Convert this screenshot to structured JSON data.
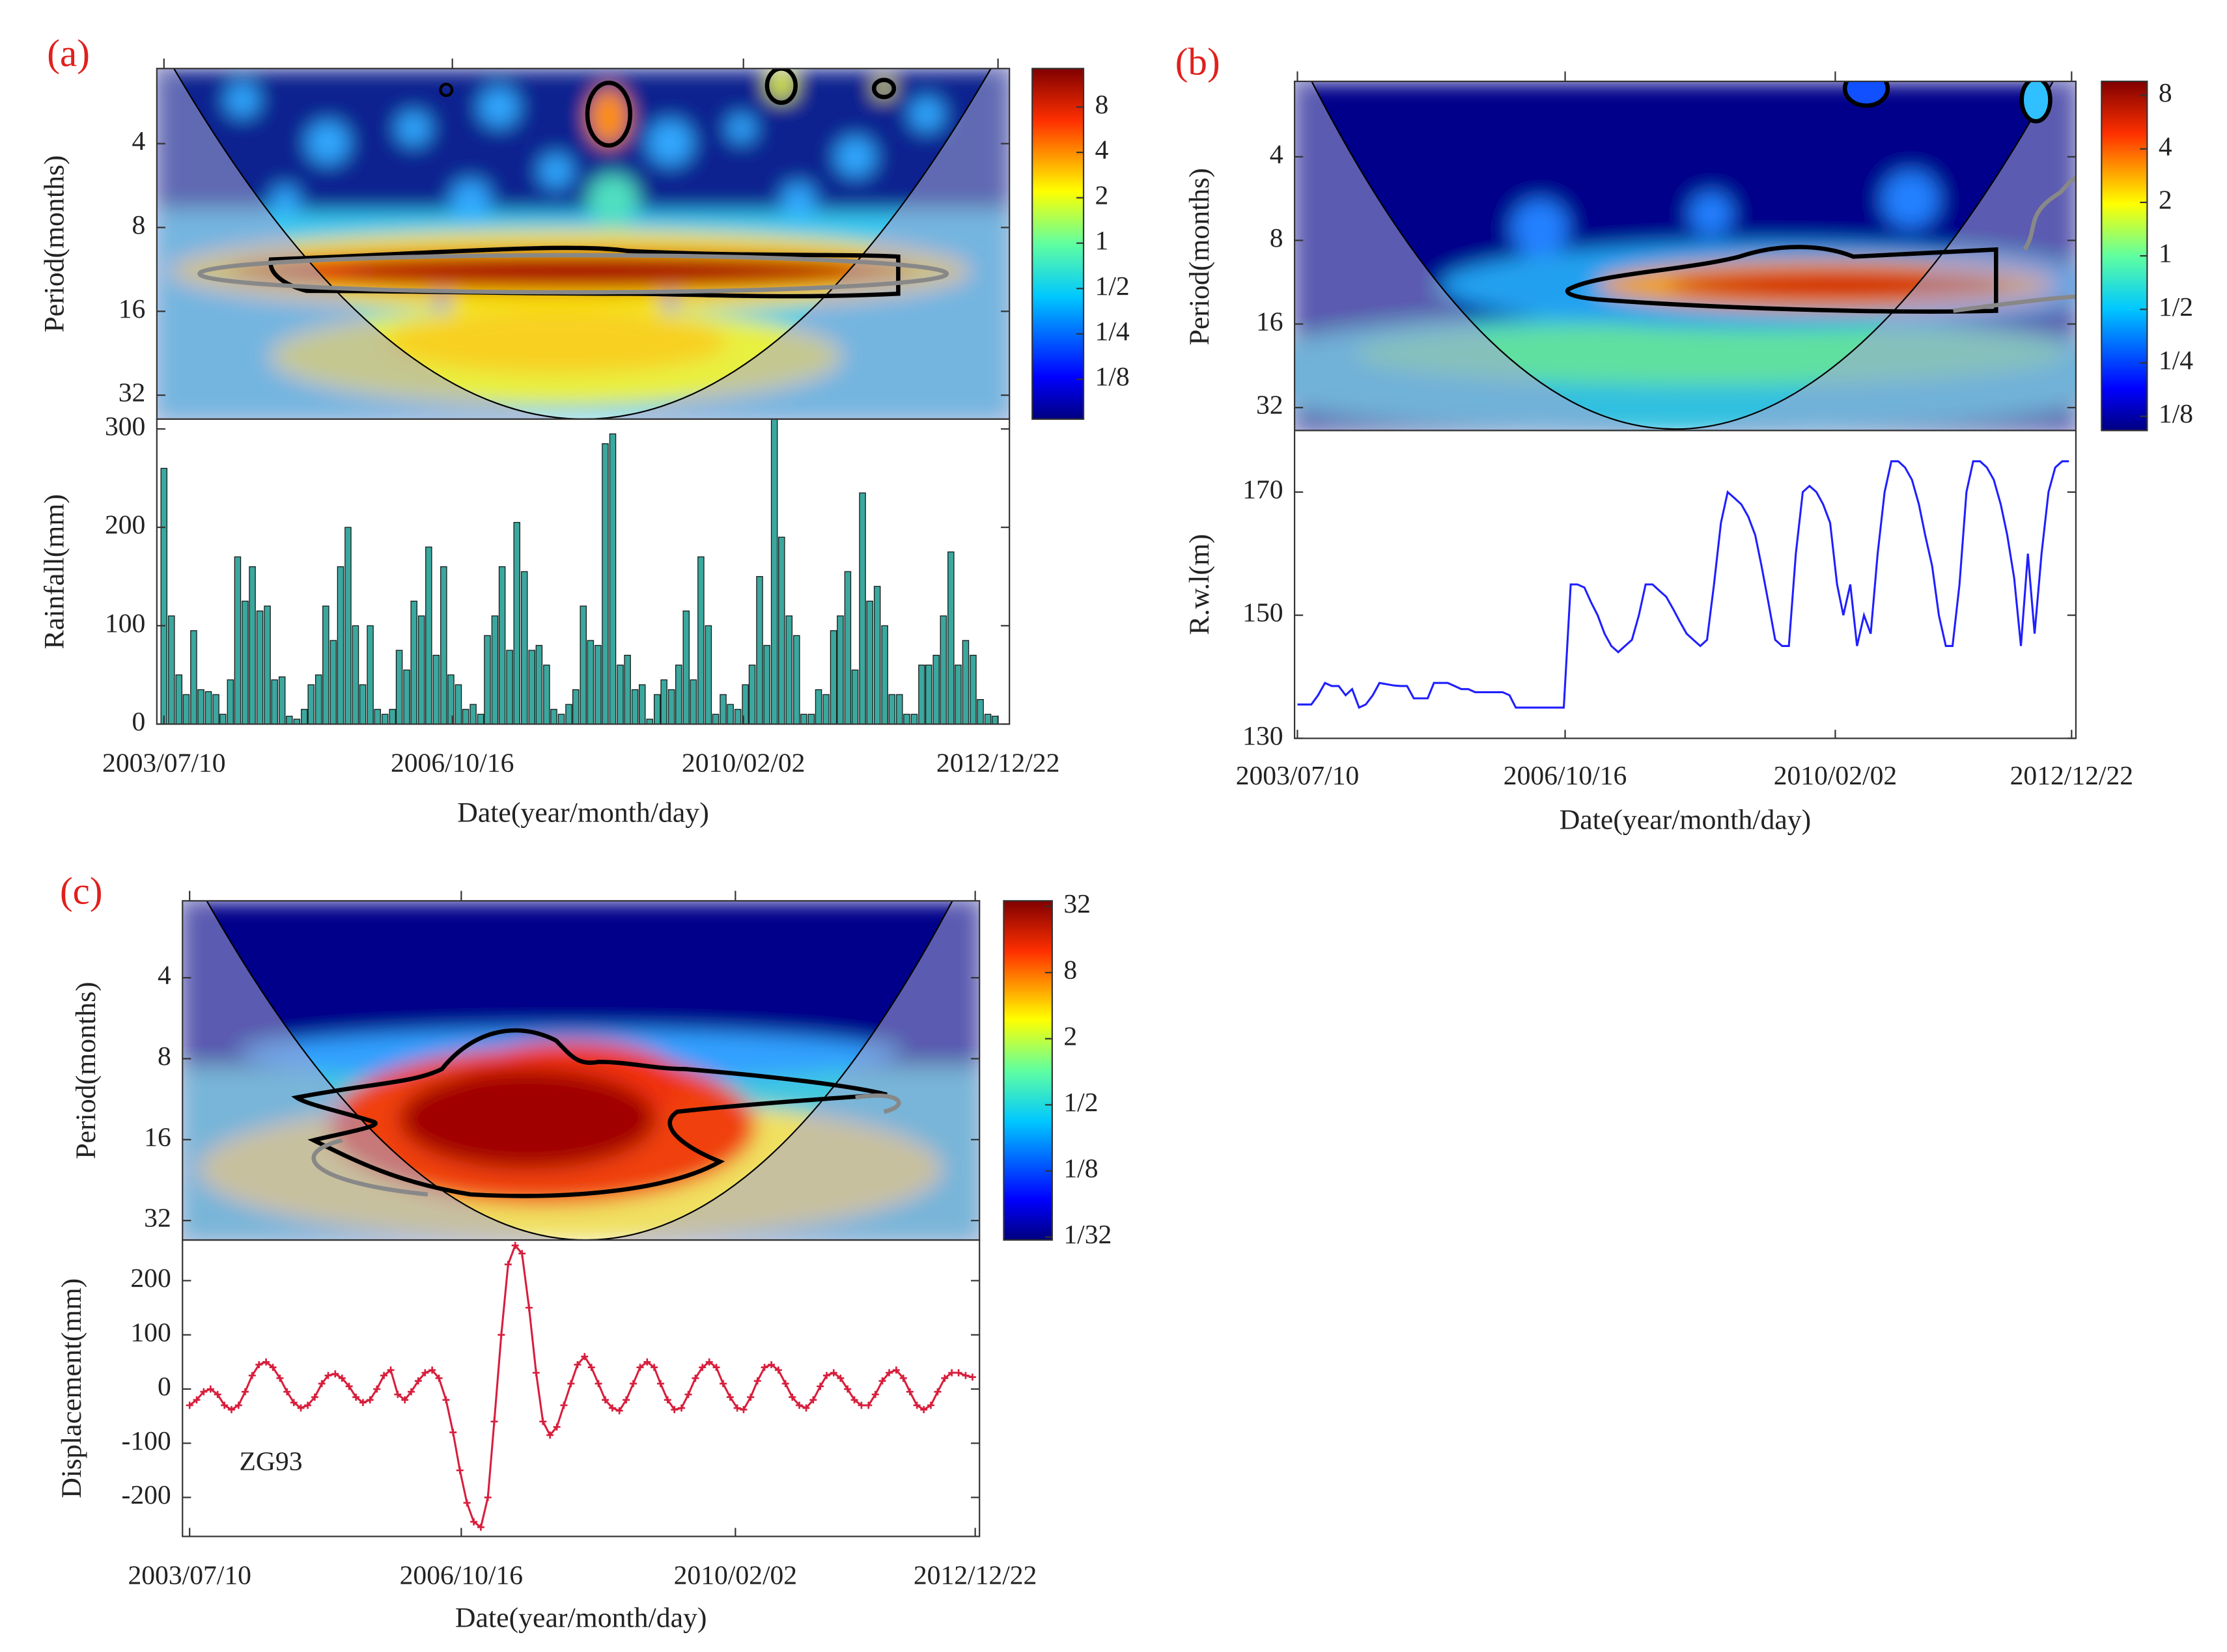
{
  "chart_data": [
    {
      "type": "wavelet",
      "panel_label": "(a)",
      "y_label": "Period(months)",
      "log_scale": true,
      "y_reversed": true,
      "ylim": [
        2.15,
        39
      ],
      "yticks": [
        4,
        8,
        16,
        32
      ],
      "xlim": [
        "2003/07/10",
        "2012/12/22"
      ],
      "colorbar": {
        "log": true,
        "lim": [
          0.068,
          14.4
        ],
        "ticks": [
          8,
          4,
          2,
          1,
          {
            "value": 0.5,
            "label": "1/2"
          },
          {
            "value": 0.25,
            "label": "1/4"
          },
          {
            "value": 0.125,
            "label": "1/8"
          }
        ]
      }
    },
    {
      "type": "bar",
      "y_label": "Rainfall(mm)",
      "x_label": "Date(year/month/day)",
      "color": "#3aa89e",
      "ylim": [
        0,
        310
      ],
      "yticks": [
        0,
        100,
        200,
        300
      ],
      "xlim": [
        "2003/07/10",
        "2012/12/22"
      ],
      "xticks": [
        "2003/07/10",
        "2006/10/16",
        "2010/02/02",
        "2012/12/22"
      ],
      "x": [
        "2003/07/10",
        "2003/08/10",
        "2003/09/10",
        "2003/10/10",
        "2003/11/10",
        "2003/12/10",
        "2004/01/10",
        "2004/02/10",
        "2004/03/10",
        "2004/04/10",
        "2004/05/10",
        "2004/06/10",
        "2004/07/10",
        "2004/08/10",
        "2004/09/10",
        "2004/10/10",
        "2004/11/10",
        "2004/12/10",
        "2005/01/10",
        "2005/02/10",
        "2005/03/10",
        "2005/04/10",
        "2005/05/10",
        "2005/06/10",
        "2005/07/10",
        "2005/08/10",
        "2005/09/10",
        "2005/10/10",
        "2005/11/10",
        "2005/12/10",
        "2006/01/10",
        "2006/02/10",
        "2006/03/10",
        "2006/04/10",
        "2006/05/10",
        "2006/06/10",
        "2006/07/10",
        "2006/08/10",
        "2006/09/10",
        "2006/10/10",
        "2006/11/10",
        "2006/12/10",
        "2007/01/10",
        "2007/02/10",
        "2007/03/10",
        "2007/04/10",
        "2007/05/10",
        "2007/06/10",
        "2007/07/10",
        "2007/08/10",
        "2007/09/10",
        "2007/10/10",
        "2007/11/10",
        "2007/12/10",
        "2008/01/10",
        "2008/02/10",
        "2008/03/10",
        "2008/04/10",
        "2008/05/10",
        "2008/06/10",
        "2008/07/10",
        "2008/08/10",
        "2008/09/10",
        "2008/10/10",
        "2008/11/10",
        "2008/12/10",
        "2009/01/10",
        "2009/02/10",
        "2009/03/10",
        "2009/04/10",
        "2009/05/10",
        "2009/06/10",
        "2009/07/10",
        "2009/08/10",
        "2009/09/10",
        "2009/10/10",
        "2009/11/10",
        "2009/12/10",
        "2010/01/10",
        "2010/02/10",
        "2010/03/10",
        "2010/04/10",
        "2010/05/10",
        "2010/06/10",
        "2010/07/10",
        "2010/08/10",
        "2010/09/10",
        "2010/10/10",
        "2010/11/10",
        "2010/12/10",
        "2011/01/10",
        "2011/02/10",
        "2011/03/10",
        "2011/04/10",
        "2011/05/10",
        "2011/06/10",
        "2011/07/10",
        "2011/08/10",
        "2011/09/10",
        "2011/10/10",
        "2011/11/10",
        "2011/12/10",
        "2012/01/10",
        "2012/02/10",
        "2012/03/10",
        "2012/04/10",
        "2012/05/10",
        "2012/06/10",
        "2012/07/10",
        "2012/08/10",
        "2012/09/10",
        "2012/10/10",
        "2012/11/10",
        "2012/12/10"
      ],
      "values": [
        260,
        110,
        50,
        30,
        95,
        35,
        33,
        30,
        10,
        45,
        170,
        125,
        160,
        115,
        120,
        45,
        48,
        8,
        5,
        15,
        40,
        50,
        120,
        85,
        160,
        200,
        100,
        40,
        100,
        15,
        10,
        15,
        75,
        55,
        125,
        110,
        180,
        70,
        160,
        50,
        40,
        15,
        20,
        10,
        90,
        110,
        160,
        75,
        205,
        155,
        75,
        80,
        60,
        15,
        10,
        20,
        35,
        120,
        85,
        80,
        285,
        295,
        60,
        70,
        35,
        40,
        5,
        30,
        45,
        35,
        60,
        115,
        45,
        170,
        100,
        10,
        30,
        20,
        15,
        40,
        60,
        150,
        80,
        310,
        190,
        110,
        90,
        10,
        10,
        35,
        30,
        95,
        110,
        155,
        55,
        235,
        125,
        140,
        100,
        30,
        30,
        10,
        10,
        60,
        60,
        70,
        110,
        175,
        60,
        85,
        70,
        25,
        10,
        8
      ]
    },
    {
      "type": "wavelet",
      "panel_label": "(b)",
      "y_label": "Period(months)",
      "log_scale": true,
      "y_reversed": true,
      "ylim": [
        2.14,
        38.7
      ],
      "yticks": [
        4,
        8,
        16,
        32
      ],
      "xlim": [
        "2003/07/10",
        "2012/12/22"
      ],
      "colorbar": {
        "log": true,
        "lim": [
          0.104,
          9.6
        ],
        "ticks": [
          8,
          4,
          2,
          1,
          {
            "value": 0.5,
            "label": "1/2"
          },
          {
            "value": 0.25,
            "label": "1/4"
          },
          {
            "value": 0.125,
            "label": "1/8"
          }
        ]
      }
    },
    {
      "type": "line",
      "y_label": "R.w.l(m)",
      "x_label": "Date(year/month/day)",
      "color": "#1f1fff",
      "markers": false,
      "ylim": [
        130,
        180
      ],
      "yticks": [
        130,
        150,
        170
      ],
      "xlim": [
        "2003/07/10",
        "2012/12/22"
      ],
      "xticks": [
        "2003/07/10",
        "2006/10/16",
        "2010/02/02",
        "2012/12/22"
      ],
      "x": [
        "2003/07/10",
        "2003/08/10",
        "2003/09/10",
        "2003/10/10",
        "2003/11/10",
        "2003/12/10",
        "2004/01/10",
        "2004/02/10",
        "2004/03/10",
        "2004/04/10",
        "2004/05/10",
        "2004/06/10",
        "2004/07/10",
        "2004/08/10",
        "2004/09/10",
        "2004/10/10",
        "2004/11/10",
        "2004/12/10",
        "2005/01/10",
        "2005/02/10",
        "2005/03/10",
        "2005/04/10",
        "2005/05/10",
        "2005/06/10",
        "2005/07/10",
        "2005/08/10",
        "2005/09/10",
        "2005/10/10",
        "2005/11/10",
        "2005/12/10",
        "2006/01/10",
        "2006/02/10",
        "2006/03/10",
        "2006/04/10",
        "2006/05/10",
        "2006/06/10",
        "2006/07/10",
        "2006/08/10",
        "2006/09/10",
        "2006/10/10",
        "2006/11/10",
        "2006/12/10",
        "2007/01/10",
        "2007/02/10",
        "2007/03/10",
        "2007/04/10",
        "2007/05/10",
        "2007/06/10",
        "2007/07/10",
        "2007/08/10",
        "2007/09/10",
        "2007/10/10",
        "2007/11/10",
        "2007/12/10",
        "2008/01/10",
        "2008/02/10",
        "2008/03/10",
        "2008/04/10",
        "2008/05/10",
        "2008/06/10",
        "2008/07/10",
        "2008/08/10",
        "2008/09/10",
        "2008/10/10",
        "2008/11/10",
        "2008/12/10",
        "2009/01/10",
        "2009/02/10",
        "2009/03/10",
        "2009/04/10",
        "2009/05/10",
        "2009/06/10",
        "2009/07/10",
        "2009/08/10",
        "2009/09/10",
        "2009/10/10",
        "2009/11/10",
        "2009/12/10",
        "2010/01/10",
        "2010/02/10",
        "2010/03/10",
        "2010/04/10",
        "2010/05/10",
        "2010/06/10",
        "2010/07/10",
        "2010/08/10",
        "2010/09/10",
        "2010/10/10",
        "2010/11/10",
        "2010/12/10",
        "2011/01/10",
        "2011/02/10",
        "2011/03/10",
        "2011/04/10",
        "2011/05/10",
        "2011/06/10",
        "2011/07/10",
        "2011/08/10",
        "2011/09/10",
        "2011/10/10",
        "2011/11/10",
        "2011/12/10",
        "2012/01/10",
        "2012/02/10",
        "2012/03/10",
        "2012/04/10",
        "2012/05/10",
        "2012/06/10",
        "2012/07/10",
        "2012/08/10",
        "2012/09/10",
        "2012/10/10",
        "2012/11/10",
        "2012/12/10"
      ],
      "values": [
        135.5,
        135.5,
        135.5,
        137,
        139,
        138.5,
        138.5,
        137,
        138,
        135,
        135.5,
        137,
        139,
        138.8,
        138.6,
        138.5,
        138.5,
        136.5,
        136.5,
        136.5,
        139,
        139,
        139,
        138.5,
        138,
        138,
        137.5,
        137.5,
        137.5,
        137.5,
        137.5,
        137,
        135,
        135,
        135,
        135,
        135,
        135,
        135,
        135,
        155,
        155,
        154.5,
        152,
        150,
        147,
        145,
        144,
        145,
        146,
        150,
        155,
        155,
        154,
        153,
        151,
        149,
        147,
        146,
        145,
        146,
        155,
        165,
        170,
        169,
        168,
        166,
        163,
        158,
        152,
        146,
        145,
        145,
        160,
        170,
        171,
        170,
        168,
        165,
        155,
        150,
        155,
        145,
        150,
        147,
        160,
        170,
        175,
        175,
        174,
        172,
        168,
        163,
        158,
        150,
        145,
        145,
        155,
        170,
        175,
        175,
        174,
        172,
        168,
        163,
        156,
        145,
        160,
        147,
        160,
        170,
        174,
        175,
        175
      ]
    },
    {
      "type": "wavelet",
      "panel_label": "(c)",
      "y_label": "Period(months)",
      "log_scale": true,
      "y_reversed": true,
      "ylim": [
        2.07,
        37.8
      ],
      "yticks": [
        4,
        8,
        16,
        32
      ],
      "xlim": [
        "2003/07/10",
        "2012/12/22"
      ],
      "colorbar": {
        "log": true,
        "lim": [
          0.0294,
          36
        ],
        "ticks": [
          32,
          8,
          2,
          {
            "value": 0.5,
            "label": "1/2"
          },
          {
            "value": 0.125,
            "label": "1/8"
          },
          {
            "value": 0.03125,
            "label": "1/32"
          }
        ]
      }
    },
    {
      "type": "line",
      "y_label": "Displacement(mm)",
      "x_label": "Date(year/month/day)",
      "annotation": "ZG93",
      "color": "#d81e3c",
      "markers": true,
      "ylim": [
        -272,
        275
      ],
      "yticks": [
        -200,
        -100,
        0,
        100,
        200
      ],
      "xlim": [
        "2003/07/10",
        "2012/12/22"
      ],
      "xticks": [
        "2003/07/10",
        "2006/10/16",
        "2010/02/02",
        "2012/12/22"
      ],
      "x": [
        "2003/07/10",
        "2003/08/10",
        "2003/09/10",
        "2003/10/10",
        "2003/11/10",
        "2003/12/10",
        "2004/01/10",
        "2004/02/10",
        "2004/03/10",
        "2004/04/10",
        "2004/05/10",
        "2004/06/10",
        "2004/07/10",
        "2004/08/10",
        "2004/09/10",
        "2004/10/10",
        "2004/11/10",
        "2004/12/10",
        "2005/01/10",
        "2005/02/10",
        "2005/03/10",
        "2005/04/10",
        "2005/05/10",
        "2005/06/10",
        "2005/07/10",
        "2005/08/10",
        "2005/09/10",
        "2005/10/10",
        "2005/11/10",
        "2005/12/10",
        "2006/01/10",
        "2006/02/10",
        "2006/03/10",
        "2006/04/10",
        "2006/05/10",
        "2006/06/10",
        "2006/07/10",
        "2006/08/10",
        "2006/09/10",
        "2006/10/10",
        "2006/11/10",
        "2006/12/10",
        "2007/01/10",
        "2007/02/10",
        "2007/03/10",
        "2007/04/10",
        "2007/05/10",
        "2007/06/10",
        "2007/07/10",
        "2007/08/10",
        "2007/09/10",
        "2007/10/10",
        "2007/11/10",
        "2007/12/10",
        "2008/01/10",
        "2008/02/10",
        "2008/03/10",
        "2008/04/10",
        "2008/05/10",
        "2008/06/10",
        "2008/07/10",
        "2008/08/10",
        "2008/09/10",
        "2008/10/10",
        "2008/11/10",
        "2008/12/10",
        "2009/01/10",
        "2009/02/10",
        "2009/03/10",
        "2009/04/10",
        "2009/05/10",
        "2009/06/10",
        "2009/07/10",
        "2009/08/10",
        "2009/09/10",
        "2009/10/10",
        "2009/11/10",
        "2009/12/10",
        "2010/01/10",
        "2010/02/10",
        "2010/03/10",
        "2010/04/10",
        "2010/05/10",
        "2010/06/10",
        "2010/07/10",
        "2010/08/10",
        "2010/09/10",
        "2010/10/10",
        "2010/11/10",
        "2010/12/10",
        "2011/01/10",
        "2011/02/10",
        "2011/03/10",
        "2011/04/10",
        "2011/05/10",
        "2011/06/10",
        "2011/07/10",
        "2011/08/10",
        "2011/09/10",
        "2011/10/10",
        "2011/11/10",
        "2011/12/10",
        "2012/01/10",
        "2012/02/10",
        "2012/03/10",
        "2012/04/10",
        "2012/05/10",
        "2012/06/10",
        "2012/07/10",
        "2012/08/10",
        "2012/09/10",
        "2012/10/10",
        "2012/11/10",
        "2012/12/10"
      ],
      "values": [
        -30,
        -20,
        -5,
        0,
        -10,
        -30,
        -38,
        -30,
        -5,
        25,
        45,
        50,
        40,
        20,
        -5,
        -25,
        -35,
        -30,
        -15,
        10,
        25,
        28,
        20,
        5,
        -15,
        -25,
        -20,
        0,
        25,
        35,
        -10,
        -20,
        -5,
        15,
        30,
        35,
        20,
        -20,
        -80,
        -150,
        -210,
        -245,
        -255,
        -200,
        -60,
        100,
        230,
        265,
        250,
        150,
        30,
        -60,
        -85,
        -70,
        -30,
        10,
        45,
        60,
        40,
        10,
        -20,
        -35,
        -40,
        -20,
        10,
        40,
        50,
        40,
        10,
        -20,
        -38,
        -35,
        -10,
        20,
        40,
        50,
        40,
        10,
        -15,
        -35,
        -38,
        -15,
        15,
        40,
        45,
        35,
        10,
        -15,
        -30,
        -35,
        -20,
        5,
        25,
        30,
        20,
        0,
        -20,
        -30,
        -30,
        -10,
        15,
        30,
        35,
        20,
        -5,
        -30,
        -38,
        -30,
        -5,
        20,
        30,
        30,
        25,
        22
      ]
    }
  ]
}
